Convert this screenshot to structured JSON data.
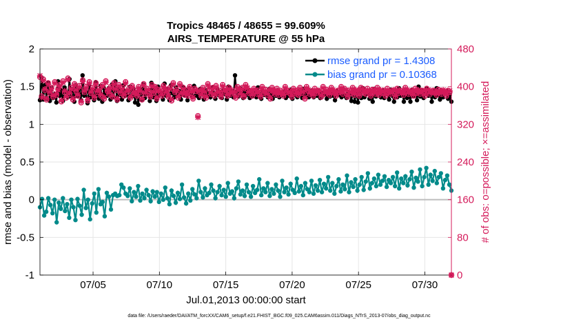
{
  "chart_data": {
    "type": "line",
    "title": "Tropics 48465 / 48655 = 99.609%",
    "subtitle": "AIRS_TEMPERATURE @ 55 hPa",
    "xlabel": "Jul.01,2013 00:00:00 start",
    "ylabel": "rmse and bias (model - observation)",
    "ylabel_right": "# of obs: o=possible; ×=assimilated",
    "footnote": "data file: /Users/raeder/DAI/ATM_forcXX/CAM6_setup/f.e21.FHIST_BGC.f09_025.CAM6assim.011/Diags_NTrS_2013-07/obs_diag_output.nc",
    "xlim": [
      1,
      32
    ],
    "ylim": [
      -1,
      2
    ],
    "ylim_right": [
      0,
      480
    ],
    "xticks": [
      5,
      10,
      15,
      20,
      25,
      30
    ],
    "xtick_labels": [
      "07/05",
      "07/10",
      "07/15",
      "07/20",
      "07/25",
      "07/30"
    ],
    "yticks": [
      -1,
      -0.5,
      0,
      0.5,
      1,
      1.5,
      2
    ],
    "ytick_labels": [
      "-1",
      "-0.5",
      "0",
      "0.5",
      "1",
      "1.5",
      "2"
    ],
    "yticks_right": [
      0,
      80,
      160,
      240,
      320,
      400,
      480
    ],
    "ytick_labels_right": [
      "0",
      "80",
      "160",
      "240",
      "320",
      "400",
      "480"
    ],
    "grid": true,
    "legend_position": "top-right",
    "series": [
      {
        "name": "rmse",
        "legend": "rmse grand pr = 1.4308",
        "color": "#000000",
        "axis": "left",
        "values": [
          1.32,
          1.62,
          1.33,
          1.52,
          1.34,
          1.55,
          1.31,
          1.48,
          1.35,
          1.4,
          1.29,
          1.57,
          1.38,
          1.45,
          1.31,
          1.49,
          1.43,
          1.36,
          1.6,
          1.38,
          1.47,
          1.3,
          1.52,
          1.38,
          1.47,
          1.32,
          1.65,
          1.38,
          1.43,
          1.28,
          1.52,
          1.36,
          1.46,
          1.32,
          1.56,
          1.4,
          1.34,
          1.51,
          1.3,
          1.48,
          1.41,
          1.38,
          1.48,
          1.33,
          1.53,
          1.36,
          1.57,
          1.31,
          1.46,
          1.39,
          1.33,
          1.52,
          1.38,
          1.44,
          1.32,
          1.5,
          1.37,
          1.47,
          1.29,
          1.42,
          1.26,
          1.47,
          1.33,
          1.53,
          1.35,
          1.44,
          1.4,
          1.31,
          1.55,
          1.36,
          1.46,
          1.31,
          1.5,
          1.39,
          1.42,
          1.33,
          1.54,
          1.38,
          1.47,
          1.32,
          1.52,
          1.41,
          1.36,
          1.49,
          1.38,
          1.44,
          1.33,
          1.5,
          1.39,
          1.46,
          1.32,
          1.48,
          1.41,
          1.36,
          1.51,
          1.38,
          1.43,
          1.35,
          1.47,
          1.4,
          1.33,
          1.45,
          1.39,
          1.42,
          1.36,
          1.49,
          1.41,
          1.34,
          1.47,
          1.39,
          1.43,
          1.35,
          1.46,
          1.4,
          1.33,
          1.5,
          1.38,
          1.44,
          1.36,
          1.65,
          1.42,
          1.37,
          1.48,
          1.41,
          1.35,
          1.44,
          1.39,
          1.46,
          1.35,
          1.42,
          1.38,
          1.45,
          1.36,
          1.49,
          1.4,
          1.34,
          1.44,
          1.39,
          1.42,
          1.36,
          1.47,
          1.4,
          1.34,
          1.43,
          1.38,
          1.45,
          1.36,
          1.41,
          1.39,
          1.44,
          1.35,
          1.4,
          1.38,
          1.46,
          1.34,
          1.42,
          1.39,
          1.36,
          1.44,
          1.4,
          1.35,
          1.47,
          1.38,
          1.43,
          1.36,
          1.4,
          1.45,
          1.36,
          1.41,
          1.38,
          1.44,
          1.35,
          1.42,
          1.39,
          1.43,
          1.34,
          1.4,
          1.37,
          1.45,
          1.38,
          1.32,
          1.44,
          1.39,
          1.43,
          1.36,
          1.47,
          1.38,
          1.35,
          1.43,
          1.4,
          1.31,
          1.44,
          1.3,
          1.42,
          1.29,
          1.45,
          1.35,
          1.48,
          1.36,
          1.4,
          1.42,
          1.34,
          1.44,
          1.3,
          1.47,
          1.37,
          1.41,
          1.43,
          1.36,
          1.45,
          1.35,
          1.4,
          1.42,
          1.33,
          1.46,
          1.38,
          1.3,
          1.44,
          1.36,
          1.48,
          1.38,
          1.42,
          1.3,
          1.46,
          1.35,
          1.43,
          1.3,
          1.46,
          1.38,
          1.44,
          1.32,
          1.5,
          1.37,
          1.45,
          1.35,
          1.4,
          1.47,
          1.38,
          1.42,
          1.3,
          1.44,
          1.36,
          1.48,
          1.39,
          1.33,
          1.45,
          1.36,
          1.41,
          1.44,
          1.34,
          1.39,
          1.3
        ]
      },
      {
        "name": "bias",
        "legend": "bias grand pr = 0.10368",
        "color": "#008a8a",
        "axis": "left",
        "values": [
          -0.1,
          0.01,
          -0.21,
          -0.16,
          0.02,
          -0.07,
          -0.18,
          0.0,
          -0.3,
          -0.04,
          -0.12,
          0.02,
          -0.15,
          -0.06,
          -0.24,
          0.0,
          -0.1,
          -0.27,
          0.01,
          -0.08,
          -0.2,
          0.13,
          -0.11,
          0.0,
          -0.26,
          -0.05,
          0.08,
          -0.17,
          0.14,
          -0.06,
          -0.03,
          -0.22,
          0.09,
          0.04,
          -0.13,
          0.06,
          0.08,
          0.05,
          0.06,
          0.2,
          0.16,
          0.08,
          0.05,
          0.15,
          -0.02,
          0.1,
          0.04,
          0.18,
          -0.01,
          0.08,
          0.02,
          0.13,
          0.06,
          -0.02,
          0.11,
          0.04,
          0.1,
          -0.03,
          0.08,
          0.0,
          0.16,
          0.02,
          -0.06,
          0.12,
          0.05,
          -0.04,
          0.09,
          0.01,
          0.2,
          0.03,
          -0.05,
          0.08,
          -0.01,
          0.14,
          0.07,
          0.02,
          0.25,
          0.1,
          0.03,
          0.15,
          0.06,
          0.09,
          0.2,
          0.12,
          0.02,
          0.1,
          0.18,
          0.06,
          0.13,
          0.04,
          0.22,
          0.08,
          0.11,
          0.02,
          0.15,
          0.24,
          0.07,
          0.12,
          0.05,
          0.2,
          0.1,
          0.04,
          0.18,
          0.09,
          0.13,
          0.27,
          0.06,
          0.15,
          0.1,
          0.22,
          0.05,
          0.14,
          0.08,
          0.2,
          0.12,
          0.04,
          0.25,
          0.1,
          0.16,
          0.07,
          0.21,
          0.13,
          0.09,
          0.28,
          0.11,
          0.18,
          0.06,
          0.22,
          0.14,
          0.1,
          0.25,
          0.08,
          0.19,
          0.12,
          0.26,
          0.1,
          0.21,
          0.15,
          0.3,
          0.12,
          0.22,
          0.08,
          0.18,
          0.27,
          0.11,
          0.2,
          0.14,
          0.32,
          0.1,
          0.23,
          0.17,
          0.27,
          0.12,
          0.2,
          0.3,
          0.13,
          0.24,
          0.35,
          0.15,
          0.22,
          0.28,
          0.18,
          0.33,
          0.2,
          0.25,
          0.31,
          0.17,
          0.26,
          0.22,
          0.3,
          0.18,
          0.36,
          0.15,
          0.28,
          0.22,
          0.31,
          0.19,
          0.27,
          0.37,
          0.16,
          0.29,
          0.24,
          0.4,
          0.18,
          0.3,
          0.42,
          0.2,
          0.33,
          0.25,
          0.38,
          0.22,
          0.3,
          0.35,
          0.15,
          0.26,
          0.32,
          0.2,
          0.12
        ]
      },
      {
        "name": "obs possible",
        "marker": "o",
        "color": "#d41a5a",
        "axis": "right",
        "values": [
          420,
          380,
          416,
          392,
          372,
          408,
          386,
          398,
          378,
          410,
          382,
          396,
          404,
          368,
          412,
          388,
          376,
          418,
          384,
          398,
          372,
          406,
          390,
          380,
          402,
          366,
          414,
          388,
          400,
          370,
          410,
          386,
          398,
          376,
          408,
          388,
          396,
          380,
          404,
          374,
          412,
          390,
          384,
          400,
          378,
          408,
          392,
          372,
          404,
          386,
          398,
          380,
          410,
          388,
          396,
          376,
          402,
          384,
          392,
          380,
          400,
          388,
          372,
          406,
          384,
          396,
          390,
          378,
          404,
          386,
          400,
          374,
          394,
          388,
          380,
          402,
          392,
          386,
          378,
          398,
          370,
          408,
          388,
          394,
          376,
          406,
          384,
          398,
          382,
          392,
          380,
          400,
          386,
          374,
          396,
          390,
          338,
          388,
          380,
          398,
          386,
          376,
          406,
          394,
          384,
          398,
          380,
          402,
          386,
          392,
          378,
          404,
          388,
          396,
          380,
          398,
          384,
          392,
          386,
          376,
          400,
          390,
          382,
          398,
          378,
          404,
          394,
          386,
          388,
          380,
          396,
          390,
          384,
          392,
          378,
          400,
          386,
          394,
          382,
          390,
          374,
          398,
          388,
          384,
          396,
          382,
          392,
          386,
          380,
          400,
          388,
          392,
          384,
          378,
          396,
          390,
          384,
          382,
          398,
          386,
          392,
          374,
          400,
          390,
          384,
          388,
          380,
          396,
          386,
          392,
          388,
          378,
          400,
          384,
          394,
          388,
          382,
          398,
          390,
          386,
          380,
          392,
          388,
          400,
          384,
          396,
          390,
          378,
          392,
          386,
          398,
          382,
          390,
          388,
          380,
          398,
          392,
          386,
          384,
          396,
          388,
          380,
          394,
          390,
          384,
          398,
          382,
          390,
          386,
          392,
          380,
          396,
          388,
          384,
          392,
          390,
          378,
          396,
          386,
          392,
          388,
          382,
          398,
          390,
          384,
          388,
          392,
          380,
          396,
          386,
          390,
          384,
          392,
          388,
          380,
          396,
          390,
          384,
          388,
          392,
          386,
          382,
          394,
          388,
          384,
          390,
          386,
          380,
          392,
          388,
          0
        ]
      },
      {
        "name": "obs assimilated",
        "marker": "x",
        "color": "#d41a5a",
        "axis": "right",
        "values": [
          423,
          377,
          413,
          395,
          375,
          405,
          389,
          395,
          381,
          407,
          385,
          393,
          401,
          371,
          409,
          391,
          379,
          415,
          387,
          395,
          375,
          403,
          393,
          383,
          399,
          369,
          411,
          391,
          397,
          373,
          407,
          389,
          395,
          379,
          405,
          391,
          393,
          383,
          401,
          377,
          409,
          393,
          387,
          397,
          381,
          405,
          395,
          375,
          401,
          389,
          395,
          383,
          407,
          391,
          393,
          379,
          399,
          387,
          389,
          383,
          397,
          391,
          375,
          403,
          387,
          393,
          393,
          381,
          401,
          389,
          397,
          377,
          391,
          391,
          383,
          399,
          395,
          389,
          381,
          395,
          373,
          405,
          391,
          391,
          379,
          403,
          387,
          395,
          385,
          389,
          383,
          397,
          389,
          377,
          393,
          393,
          335,
          391,
          383,
          395,
          389,
          379,
          403,
          397,
          387,
          395,
          383,
          399,
          389,
          389,
          381,
          401,
          391,
          393,
          383,
          395,
          387,
          389,
          389,
          379,
          397,
          393,
          385,
          395,
          381,
          401,
          397,
          389,
          391,
          383,
          393,
          393,
          387,
          389,
          381,
          397,
          389,
          391,
          385,
          393,
          377,
          395,
          391,
          387,
          393,
          385,
          389,
          389,
          383,
          397,
          391,
          389,
          387,
          381,
          393,
          393,
          387,
          385,
          395,
          389,
          389,
          377,
          397,
          393,
          387,
          391,
          383,
          393,
          389,
          389,
          391,
          381,
          397,
          387,
          391,
          391,
          385,
          395,
          393,
          389,
          383,
          389,
          391,
          397,
          387,
          393,
          393,
          381,
          389,
          389,
          395,
          385,
          393,
          391,
          383,
          395,
          395,
          389,
          387,
          393,
          391,
          383,
          391,
          393,
          387,
          395,
          385,
          393,
          389,
          389,
          383,
          393,
          391,
          387,
          389,
          393,
          381,
          393,
          389,
          389,
          391,
          385,
          395,
          393,
          387,
          391,
          389,
          383,
          393,
          389,
          393,
          387,
          389,
          391,
          383,
          393,
          393,
          387,
          391,
          389,
          389,
          385,
          391,
          391,
          387,
          393,
          389,
          383,
          389,
          391,
          0
        ]
      }
    ]
  }
}
